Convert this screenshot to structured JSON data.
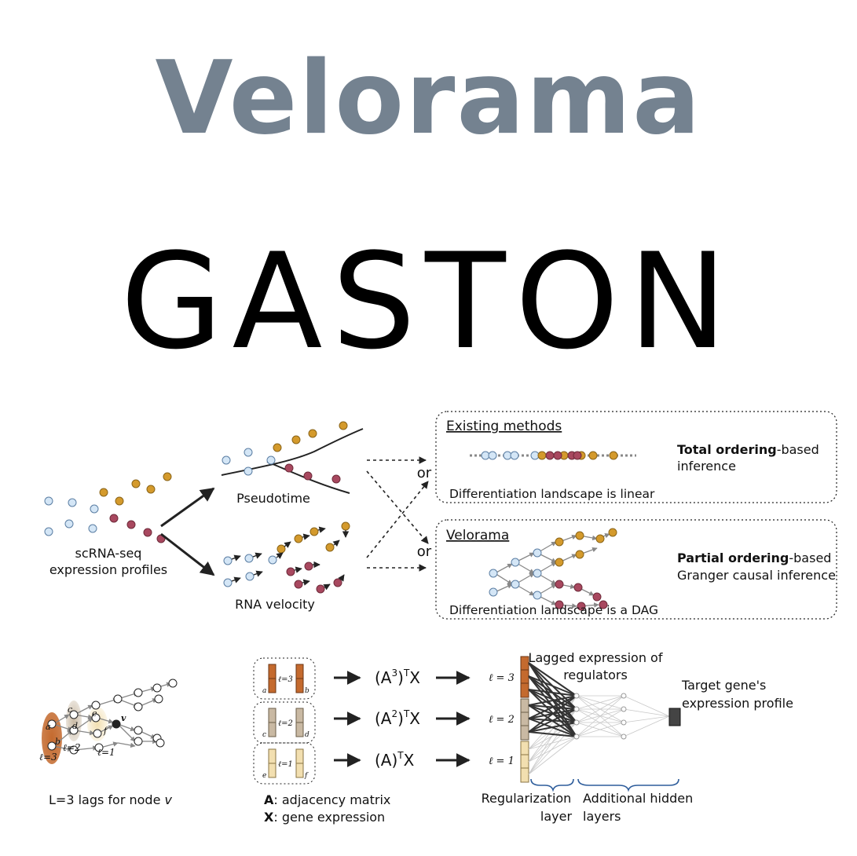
{
  "logos": {
    "velorama": "Velorama",
    "gaston": "GASTON"
  },
  "top_figure": {
    "input_label_line1": "scRNA-seq",
    "input_label_line2": "expression profiles",
    "pseudotime_label": "Pseudotime",
    "rna_velocity_label": "RNA velocity",
    "or_label": "or",
    "existing_box": {
      "title": "Existing methods",
      "subtitle": "Differentiation landscape is linear",
      "desc_bold": "Total ordering",
      "desc_rest": "-based",
      "desc_line2": "inference"
    },
    "velorama_box": {
      "title": "Velorama",
      "subtitle": "Differentiation landscape is a DAG",
      "desc_bold": "Partial ordering",
      "desc_rest": "-based",
      "desc_line2": "Granger causal inference"
    }
  },
  "bottom_figure": {
    "dag_caption_prefix": "L=3 lags for node ",
    "dag_caption_var": "v",
    "node_letters": [
      "a",
      "b",
      "c",
      "d",
      "e",
      "f",
      "v"
    ],
    "lag_labels": [
      "ℓ=3",
      "ℓ=2",
      "ℓ=1"
    ],
    "lag_box_labels": [
      "ℓ=3",
      "ℓ=2",
      "ℓ=1"
    ],
    "lag_box_letters": [
      [
        "a",
        "b"
      ],
      [
        "c",
        "d"
      ],
      [
        "e",
        "f"
      ]
    ],
    "formula_base": [
      "(A",
      "(A",
      "(A)"
    ],
    "formula_sup": [
      "3",
      "2",
      ""
    ],
    "formula_tail": [
      ")",
      ")",
      ""
    ],
    "formula_T": "T",
    "formula_X": "X",
    "legend_A_bold": "A",
    "legend_A_rest": ": adjacency matrix",
    "legend_X_bold": "X",
    "legend_X_rest": ": gene expression",
    "nn_lag_labels": [
      "ℓ = 3",
      "ℓ = 2",
      "ℓ = 1"
    ],
    "lagged_label_line1": "Lagged expression of",
    "lagged_label_line2": "regulators",
    "target_label_line1": "Target gene's",
    "target_label_line2": "expression profile",
    "reg_layer_line1": "Regularization",
    "reg_layer_line2": "layer",
    "hidden_line1": "Additional hidden",
    "hidden_line2": "layers"
  },
  "colors": {
    "velorama_logo": "#748290",
    "gaston_logo": "#000000",
    "cell_blue": "#d4e6f6",
    "cell_gold": "#d49a2c",
    "cell_maroon": "#a8485f",
    "lag3": "#c46a2e",
    "lag2": "#c9b9a3",
    "lag1": "#f2dfb0",
    "brace": "#2e5d9b"
  }
}
